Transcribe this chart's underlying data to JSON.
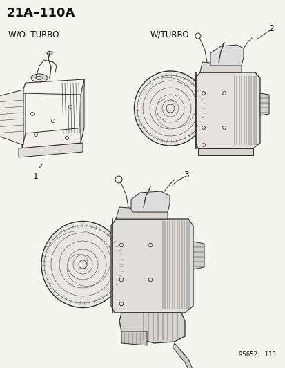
{
  "title": "21A–110A",
  "bg_color": "#f5f5f0",
  "label_color": "#111111",
  "part_number": "95652  110",
  "labels": {
    "top_left": "W/O  TURBO",
    "top_right": "W/TURBO",
    "num1": "1",
    "num2": "2",
    "num3": "3"
  },
  "title_fontsize": 13,
  "label_fontsize": 8.5,
  "num_fontsize": 9,
  "part_fontsize": 6.5,
  "line_color": "#2a2a2a",
  "line_width": 0.7,
  "fig_width": 4.14,
  "fig_height": 5.33,
  "dpi": 100
}
